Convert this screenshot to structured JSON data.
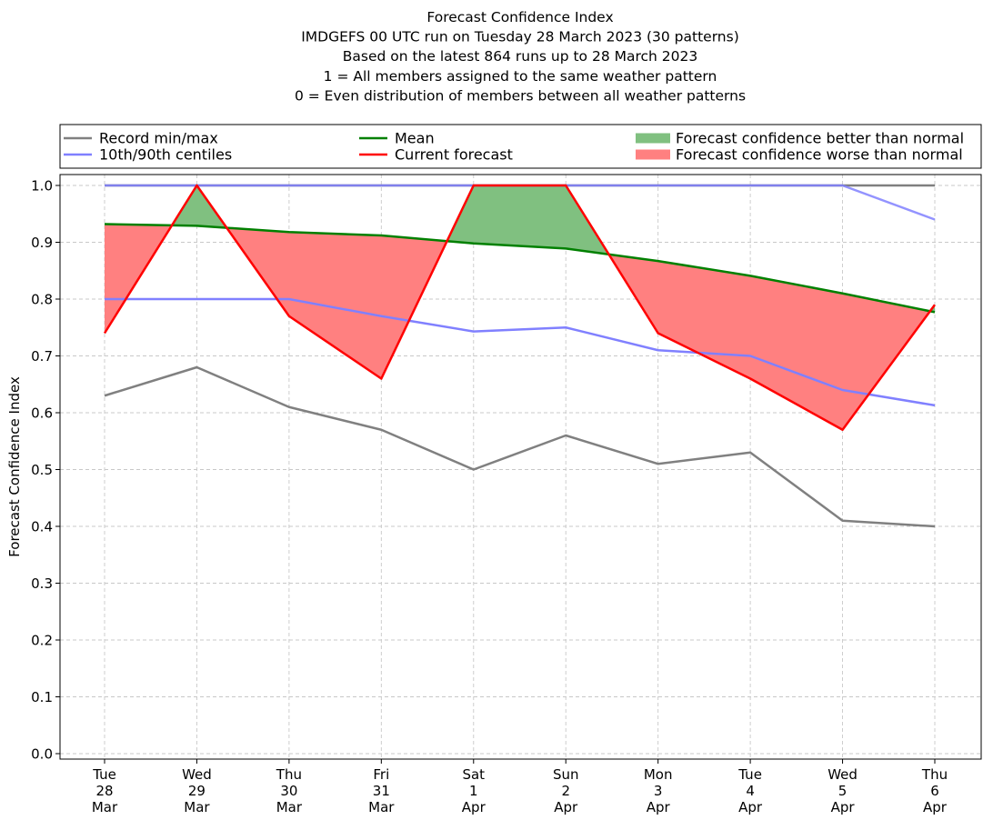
{
  "chart_data": {
    "type": "line",
    "title_lines": [
      "Forecast Confidence Index",
      "IMDGEFS 00 UTC run on Tuesday 28 March 2023 (30 patterns)",
      "Based on the latest 864 runs up to 28 March 2023",
      "1 = All members assigned to the same weather pattern",
      "0 = Even distribution of members between all weather patterns"
    ],
    "ylabel": "Forecast Confidence Index",
    "xlabel": "",
    "ylim": [
      0.0,
      1.0
    ],
    "yticks": [
      "0.0",
      "0.1",
      "0.2",
      "0.3",
      "0.4",
      "0.5",
      "0.6",
      "0.7",
      "0.8",
      "0.9",
      "1.0"
    ],
    "grid": true,
    "legend_position": "top",
    "x": [
      [
        "Tue",
        "28",
        "Mar"
      ],
      [
        "Wed",
        "29",
        "Mar"
      ],
      [
        "Thu",
        "30",
        "Mar"
      ],
      [
        "Fri",
        "31",
        "Mar"
      ],
      [
        "Sat",
        "1",
        "Apr"
      ],
      [
        "Sun",
        "2",
        "Apr"
      ],
      [
        "Mon",
        "3",
        "Apr"
      ],
      [
        "Tue",
        "4",
        "Apr"
      ],
      [
        "Wed",
        "5",
        "Apr"
      ],
      [
        "Thu",
        "6",
        "Apr"
      ]
    ],
    "series": [
      {
        "key": "record_min",
        "values": [
          0.63,
          0.68,
          0.61,
          0.57,
          0.5,
          0.56,
          0.51,
          0.53,
          0.41,
          0.4
        ],
        "color": "#808080"
      },
      {
        "key": "record_max",
        "values": [
          1.0,
          1.0,
          1.0,
          1.0,
          1.0,
          1.0,
          1.0,
          1.0,
          1.0,
          1.0
        ],
        "color": "#808080"
      },
      {
        "key": "p10",
        "values": [
          0.8,
          0.8,
          0.8,
          0.77,
          0.743,
          0.75,
          0.71,
          0.7,
          0.64,
          0.613
        ],
        "color": "#8080ff"
      },
      {
        "key": "p90",
        "values": [
          1.0,
          1.0,
          1.0,
          1.0,
          1.0,
          1.0,
          1.0,
          1.0,
          1.0,
          0.94
        ],
        "color": "#8080ff"
      },
      {
        "key": "mean",
        "values": [
          0.932,
          0.929,
          0.918,
          0.912,
          0.898,
          0.889,
          0.867,
          0.841,
          0.81,
          0.777
        ],
        "color": "#008000"
      },
      {
        "key": "current",
        "values": [
          0.74,
          1.0,
          0.77,
          0.66,
          1.0,
          1.0,
          0.74,
          0.66,
          0.57,
          0.79
        ],
        "color": "#ff0000"
      }
    ],
    "fills": {
      "better_color": "#80c080",
      "worse_color": "#ff8080"
    },
    "legend": [
      {
        "label": "Record min/max",
        "kind": "line",
        "color": "#808080"
      },
      {
        "label": "10th/90th centiles",
        "kind": "line",
        "color": "#8080ff"
      },
      {
        "label": "Mean",
        "kind": "line",
        "color": "#008000"
      },
      {
        "label": "Current forecast",
        "kind": "line",
        "color": "#ff0000"
      },
      {
        "label": "Forecast confidence better than normal",
        "kind": "patch",
        "color": "#80c080"
      },
      {
        "label": "Forecast confidence worse than normal",
        "kind": "patch",
        "color": "#ff8080"
      }
    ]
  }
}
